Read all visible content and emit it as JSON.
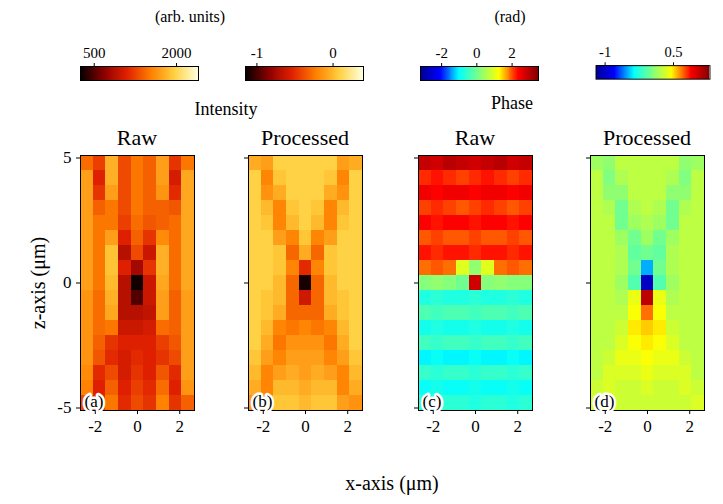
{
  "chart_data": {
    "type": "heatmap",
    "xlabel": "x-axis (μm)",
    "ylabel": "z-axis (μm)",
    "xlim": [
      -2.7,
      2.7
    ],
    "xticks": [
      -2,
      0,
      2
    ],
    "ylim": [
      -5.1,
      5.1
    ],
    "yticks": [
      -5,
      0,
      5
    ],
    "x": [
      -2.4,
      -1.8,
      -1.2,
      -0.6,
      0,
      0.6,
      1.2,
      1.8,
      2.4
    ],
    "y": [
      4.8,
      4.2,
      3.6,
      3.0,
      2.4,
      1.8,
      1.2,
      0.6,
      0,
      -0.6,
      -1.2,
      -1.8,
      -2.4,
      -3.0,
      -3.6,
      -4.2,
      -4.8
    ],
    "groups": [
      {
        "title": "Intensity",
        "unit": "(arb. units)",
        "panels": [
          {
            "title": "Raw",
            "letter": "(a)",
            "colorbar": {
              "lim": [
                250,
                2400
              ],
              "ticks": [
                500,
                2000
              ],
              "colors": [
                "#000000",
                "#8b0000",
                "#e02000",
                "#ff8000",
                "#ffd040",
                "#ffffe0"
              ]
            },
            "values": [
              [
                1450,
                1250,
                1800,
                1300,
                1500,
                1400,
                1700,
                1200,
                1500
              ],
              [
                1700,
                1100,
                1800,
                1300,
                1500,
                1400,
                1700,
                1050,
                1750
              ],
              [
                1700,
                1200,
                1700,
                1300,
                1500,
                1400,
                1650,
                1150,
                1750
              ],
              [
                1700,
                1400,
                1500,
                1300,
                1500,
                1400,
                1400,
                1350,
                1750
              ],
              [
                1700,
                1500,
                1500,
                1250,
                1450,
                1350,
                1400,
                1450,
                1750
              ],
              [
                1700,
                1500,
                1700,
                1100,
                1400,
                1200,
                1600,
                1450,
                1750
              ],
              [
                1700,
                1500,
                1900,
                900,
                1300,
                1000,
                1800,
                1450,
                1750
              ],
              [
                1700,
                1500,
                1900,
                1100,
                800,
                1200,
                1800,
                1450,
                1750
              ],
              [
                1700,
                1500,
                1850,
                900,
                300,
                1000,
                1750,
                1450,
                1750
              ],
              [
                1650,
                1450,
                1800,
                900,
                500,
                1000,
                1700,
                1400,
                1700
              ],
              [
                1650,
                1450,
                1750,
                900,
                900,
                950,
                1700,
                1400,
                1700
              ],
              [
                1650,
                1450,
                1500,
                1000,
                1000,
                1050,
                1450,
                1400,
                1700
              ],
              [
                1650,
                1400,
                1200,
                1100,
                1100,
                1100,
                1250,
                1350,
                1700
              ],
              [
                1650,
                1350,
                1150,
                1050,
                1150,
                1100,
                1200,
                1300,
                1700
              ],
              [
                1600,
                1150,
                1300,
                1050,
                1200,
                1100,
                1350,
                1150,
                1700
              ],
              [
                1550,
                1100,
                1400,
                1100,
                1250,
                1150,
                1450,
                1100,
                1650
              ],
              [
                1300,
                1150,
                1500,
                1150,
                1300,
                1200,
                1550,
                1200,
                1400
              ]
            ]
          },
          {
            "title": "Processed",
            "letter": "(b)",
            "colorbar": {
              "lim": [
                -1.15,
                0.4
              ],
              "ticks": [
                -1,
                0
              ],
              "colors": [
                "#000000",
                "#8b0000",
                "#e02000",
                "#ff8000",
                "#ffd040",
                "#ffffe0"
              ]
            },
            "values": [
              [
                -0.05,
                -0.1,
                0.1,
                0.1,
                0.1,
                0.1,
                0.1,
                -0.1,
                -0.05
              ],
              [
                0.1,
                -0.2,
                0.05,
                0.1,
                0.1,
                0.1,
                0.05,
                -0.2,
                0.1
              ],
              [
                0.1,
                -0.15,
                -0.05,
                0.1,
                0.1,
                0.1,
                -0.05,
                -0.15,
                0.1
              ],
              [
                0.1,
                0.0,
                -0.2,
                0.05,
                0.1,
                0.05,
                -0.2,
                0.0,
                0.1
              ],
              [
                0.1,
                0.05,
                -0.2,
                0.0,
                0.1,
                0.0,
                -0.2,
                0.05,
                0.1
              ],
              [
                0.1,
                0.1,
                -0.1,
                -0.2,
                0.05,
                -0.2,
                -0.1,
                0.1,
                0.1
              ],
              [
                0.1,
                0.1,
                0.05,
                -0.3,
                -0.05,
                -0.3,
                0.05,
                0.1,
                0.1
              ],
              [
                0.1,
                0.1,
                0.05,
                -0.2,
                -0.5,
                -0.2,
                0.05,
                0.1,
                0.1
              ],
              [
                0.1,
                0.1,
                0.0,
                -0.3,
                -1.1,
                -0.3,
                0.0,
                0.1,
                0.1
              ],
              [
                0.1,
                0.05,
                0.0,
                -0.3,
                -0.6,
                -0.3,
                0.0,
                0.05,
                0.1
              ],
              [
                0.1,
                0.05,
                -0.05,
                -0.3,
                -0.3,
                -0.3,
                -0.05,
                0.05,
                0.1
              ],
              [
                0.1,
                0.0,
                -0.2,
                -0.25,
                -0.2,
                -0.25,
                -0.2,
                0.0,
                0.1
              ],
              [
                0.1,
                -0.05,
                -0.25,
                -0.15,
                -0.15,
                -0.15,
                -0.25,
                -0.05,
                0.1
              ],
              [
                0.05,
                -0.1,
                -0.2,
                -0.1,
                -0.1,
                -0.1,
                -0.2,
                -0.1,
                0.05
              ],
              [
                0.0,
                -0.2,
                -0.1,
                -0.05,
                -0.1,
                -0.05,
                -0.1,
                -0.2,
                0.0
              ],
              [
                -0.05,
                -0.2,
                0.0,
                0.0,
                -0.05,
                0.0,
                0.0,
                -0.2,
                -0.05
              ],
              [
                -0.15,
                -0.1,
                0.05,
                0.05,
                0.0,
                0.05,
                0.05,
                -0.1,
                -0.15
              ]
            ]
          }
        ]
      },
      {
        "title": "Phase",
        "unit": "(rad)",
        "panels": [
          {
            "title": "Raw",
            "letter": "(c)",
            "colorbar": {
              "lim": [
                -3.2,
                3.5
              ],
              "ticks": [
                -2,
                0,
                2
              ],
              "colors": [
                "#00008f",
                "#0000ff",
                "#00ffff",
                "#80ff80",
                "#ffff00",
                "#ff0000",
                "#800000"
              ]
            },
            "values": [
              [
                2.9,
                2.8,
                3.0,
                2.9,
                2.8,
                2.9,
                3.0,
                2.8,
                2.9
              ],
              [
                2.2,
                2.3,
                2.2,
                2.1,
                2.2,
                2.3,
                2.2,
                2.1,
                2.2
              ],
              [
                2.5,
                2.4,
                2.5,
                2.5,
                2.4,
                2.5,
                2.5,
                2.4,
                2.5
              ],
              [
                2.1,
                2.2,
                2.1,
                2.0,
                2.1,
                2.2,
                2.1,
                2.0,
                2.1
              ],
              [
                2.4,
                2.3,
                2.4,
                2.4,
                2.3,
                2.4,
                2.4,
                2.3,
                2.4
              ],
              [
                2.0,
                2.1,
                2.0,
                2.0,
                2.1,
                2.0,
                2.0,
                2.1,
                2.0
              ],
              [
                2.3,
                2.2,
                2.3,
                2.3,
                2.2,
                2.3,
                2.3,
                2.2,
                2.3
              ],
              [
                1.9,
                2.0,
                1.9,
                1.0,
                0.3,
                1.0,
                1.9,
                2.0,
                1.9
              ],
              [
                0.2,
                0.3,
                0.2,
                0.0,
                2.8,
                0.2,
                0.3,
                0.2,
                0.2
              ],
              [
                -0.7,
                -0.6,
                -0.7,
                -0.7,
                -0.6,
                -0.7,
                -0.7,
                -0.6,
                -0.7
              ],
              [
                -0.3,
                -0.4,
                -0.3,
                -0.3,
                -0.4,
                -0.3,
                -0.3,
                -0.4,
                -0.3
              ],
              [
                -0.8,
                -0.7,
                -0.8,
                -0.8,
                -0.7,
                -0.8,
                -0.8,
                -0.7,
                -0.8
              ],
              [
                -0.4,
                -0.5,
                -0.4,
                -0.4,
                -0.5,
                -0.4,
                -0.4,
                -0.5,
                -0.4
              ],
              [
                -1.0,
                -0.9,
                -1.0,
                -1.0,
                -0.9,
                -1.0,
                -1.0,
                -0.9,
                -1.0
              ],
              [
                -0.5,
                -0.6,
                -0.5,
                -0.5,
                -0.6,
                -0.5,
                -0.5,
                -0.6,
                -0.5
              ],
              [
                -0.9,
                -0.8,
                -0.9,
                -0.9,
                -0.8,
                -0.9,
                -0.9,
                -0.8,
                -0.9
              ],
              [
                -0.6,
                -0.7,
                -0.6,
                -0.6,
                -0.7,
                -0.6,
                -0.6,
                -0.7,
                -0.6
              ]
            ]
          },
          {
            "title": "Processed",
            "letter": "(d)",
            "colorbar": {
              "lim": [
                -1.2,
                1.3
              ],
              "ticks": [
                -1,
                0.5
              ],
              "colors": [
                "#00008f",
                "#0000ff",
                "#00ffff",
                "#80ff80",
                "#ffff00",
                "#ff0000",
                "#800000"
              ]
            },
            "values": [
              [
                0.15,
                0.1,
                0.25,
                0.25,
                0.25,
                0.25,
                0.25,
                0.1,
                0.15
              ],
              [
                0.25,
                0.05,
                0.2,
                0.25,
                0.25,
                0.25,
                0.2,
                0.05,
                0.25
              ],
              [
                0.25,
                0.1,
                0.1,
                0.25,
                0.25,
                0.25,
                0.1,
                0.1,
                0.25
              ],
              [
                0.25,
                0.2,
                0.0,
                0.2,
                0.25,
                0.2,
                0.0,
                0.2,
                0.25
              ],
              [
                0.25,
                0.25,
                0.0,
                0.15,
                0.2,
                0.15,
                0.0,
                0.25,
                0.25
              ],
              [
                0.25,
                0.25,
                0.15,
                0.0,
                0.15,
                0.0,
                0.15,
                0.25,
                0.25
              ],
              [
                0.25,
                0.25,
                0.2,
                -0.05,
                0.0,
                -0.05,
                0.2,
                0.25,
                0.25
              ],
              [
                0.25,
                0.25,
                0.2,
                0.0,
                -0.5,
                0.0,
                0.2,
                0.25,
                0.25
              ],
              [
                0.25,
                0.25,
                0.15,
                -0.1,
                -1.0,
                -0.1,
                0.15,
                0.25,
                0.25
              ],
              [
                0.25,
                0.25,
                0.2,
                0.4,
                1.1,
                0.4,
                0.2,
                0.25,
                0.25
              ],
              [
                0.25,
                0.25,
                0.25,
                0.45,
                0.7,
                0.45,
                0.25,
                0.25,
                0.25
              ],
              [
                0.25,
                0.25,
                0.3,
                0.5,
                0.55,
                0.5,
                0.3,
                0.25,
                0.25
              ],
              [
                0.25,
                0.25,
                0.35,
                0.45,
                0.5,
                0.45,
                0.35,
                0.25,
                0.25
              ],
              [
                0.25,
                0.3,
                0.4,
                0.4,
                0.45,
                0.4,
                0.4,
                0.3,
                0.25
              ],
              [
                0.25,
                0.35,
                0.35,
                0.35,
                0.4,
                0.35,
                0.35,
                0.35,
                0.25
              ],
              [
                0.3,
                0.35,
                0.3,
                0.3,
                0.35,
                0.3,
                0.3,
                0.35,
                0.3
              ],
              [
                0.35,
                0.3,
                0.3,
                0.3,
                0.3,
                0.3,
                0.3,
                0.3,
                0.35
              ]
            ]
          }
        ]
      }
    ]
  }
}
